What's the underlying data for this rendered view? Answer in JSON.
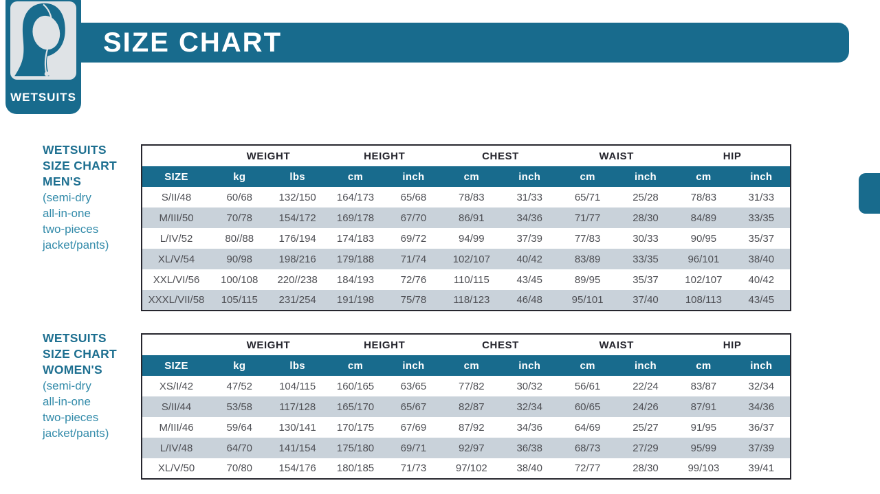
{
  "colors": {
    "teal": "#186b8d",
    "stripe": "#c9d2da",
    "border_dark": "#26262e",
    "cell_text": "#4e4f54",
    "label_teal": "#1d6f90",
    "label_teal_light": "#338baa",
    "badge_inner": "#dfe3e6"
  },
  "header": {
    "title": "SIZE CHART"
  },
  "brand": {
    "badge_label": "WETSUITS",
    "icon": "wetsuit-hood-icon"
  },
  "sections": [
    {
      "id": "mens",
      "label_lines": [
        "WETSUITS",
        "SIZE CHART",
        "MEN'S"
      ],
      "sub_lines": [
        "(semi-dry",
        "all-in-one",
        "two-pieces",
        "jacket/pants)"
      ],
      "table": {
        "groups": [
          {
            "label": "",
            "span": 1
          },
          {
            "label": "WEIGHT",
            "span": 2
          },
          {
            "label": "HEIGHT",
            "span": 2
          },
          {
            "label": "CHEST",
            "span": 2
          },
          {
            "label": "WAIST",
            "span": 2
          },
          {
            "label": "HIP",
            "span": 2
          }
        ],
        "columns": [
          "SIZE",
          "kg",
          "lbs",
          "cm",
          "inch",
          "cm",
          "inch",
          "cm",
          "inch",
          "cm",
          "inch"
        ],
        "rows": [
          [
            "S/II/48",
            "60/68",
            "132/150",
            "164/173",
            "65/68",
            "78/83",
            "31/33",
            "65/71",
            "25/28",
            "78/83",
            "31/33"
          ],
          [
            "M/III/50",
            "70/78",
            "154/172",
            "169/178",
            "67/70",
            "86/91",
            "34/36",
            "71/77",
            "28/30",
            "84/89",
            "33/35"
          ],
          [
            "L/IV/52",
            "80//88",
            "176/194",
            "174/183",
            "69/72",
            "94/99",
            "37/39",
            "77/83",
            "30/33",
            "90/95",
            "35/37"
          ],
          [
            "XL/V/54",
            "90/98",
            "198/216",
            "179/188",
            "71/74",
            "102/107",
            "40/42",
            "83/89",
            "33/35",
            "96/101",
            "38/40"
          ],
          [
            "XXL/VI/56",
            "100/108",
            "220//238",
            "184/193",
            "72/76",
            "110/115",
            "43/45",
            "89/95",
            "35/37",
            "102/107",
            "40/42"
          ],
          [
            "XXXL/VII/58",
            "105/115",
            "231/254",
            "191/198",
            "75/78",
            "118/123",
            "46/48",
            "95/101",
            "37/40",
            "108/113",
            "43/45"
          ]
        ]
      }
    },
    {
      "id": "womens",
      "label_lines": [
        "WETSUITS",
        "SIZE CHART",
        "WOMEN'S"
      ],
      "sub_lines": [
        "(semi-dry",
        "all-in-one",
        "two-pieces",
        "jacket/pants)"
      ],
      "table": {
        "groups": [
          {
            "label": "",
            "span": 1
          },
          {
            "label": "WEIGHT",
            "span": 2
          },
          {
            "label": "HEIGHT",
            "span": 2
          },
          {
            "label": "CHEST",
            "span": 2
          },
          {
            "label": "WAIST",
            "span": 2
          },
          {
            "label": "HIP",
            "span": 2
          }
        ],
        "columns": [
          "SIZE",
          "kg",
          "lbs",
          "cm",
          "inch",
          "cm",
          "inch",
          "cm",
          "inch",
          "cm",
          "inch"
        ],
        "rows": [
          [
            "XS/I/42",
            "47/52",
            "104/115",
            "160/165",
            "63/65",
            "77/82",
            "30/32",
            "56/61",
            "22/24",
            "83/87",
            "32/34"
          ],
          [
            "S/II/44",
            "53/58",
            "117/128",
            "165/170",
            "65/67",
            "82/87",
            "32/34",
            "60/65",
            "24/26",
            "87/91",
            "34/36"
          ],
          [
            "M/III/46",
            "59/64",
            "130/141",
            "170/175",
            "67/69",
            "87/92",
            "34/36",
            "64/69",
            "25/27",
            "91/95",
            "36/37"
          ],
          [
            "L/IV/48",
            "64/70",
            "141/154",
            "175/180",
            "69/71",
            "92/97",
            "36/38",
            "68/73",
            "27/29",
            "95/99",
            "37/39"
          ],
          [
            "XL/V/50",
            "70/80",
            "154/176",
            "180/185",
            "71/73",
            "97/102",
            "38/40",
            "72/77",
            "28/30",
            "99/103",
            "39/41"
          ]
        ]
      }
    }
  ]
}
